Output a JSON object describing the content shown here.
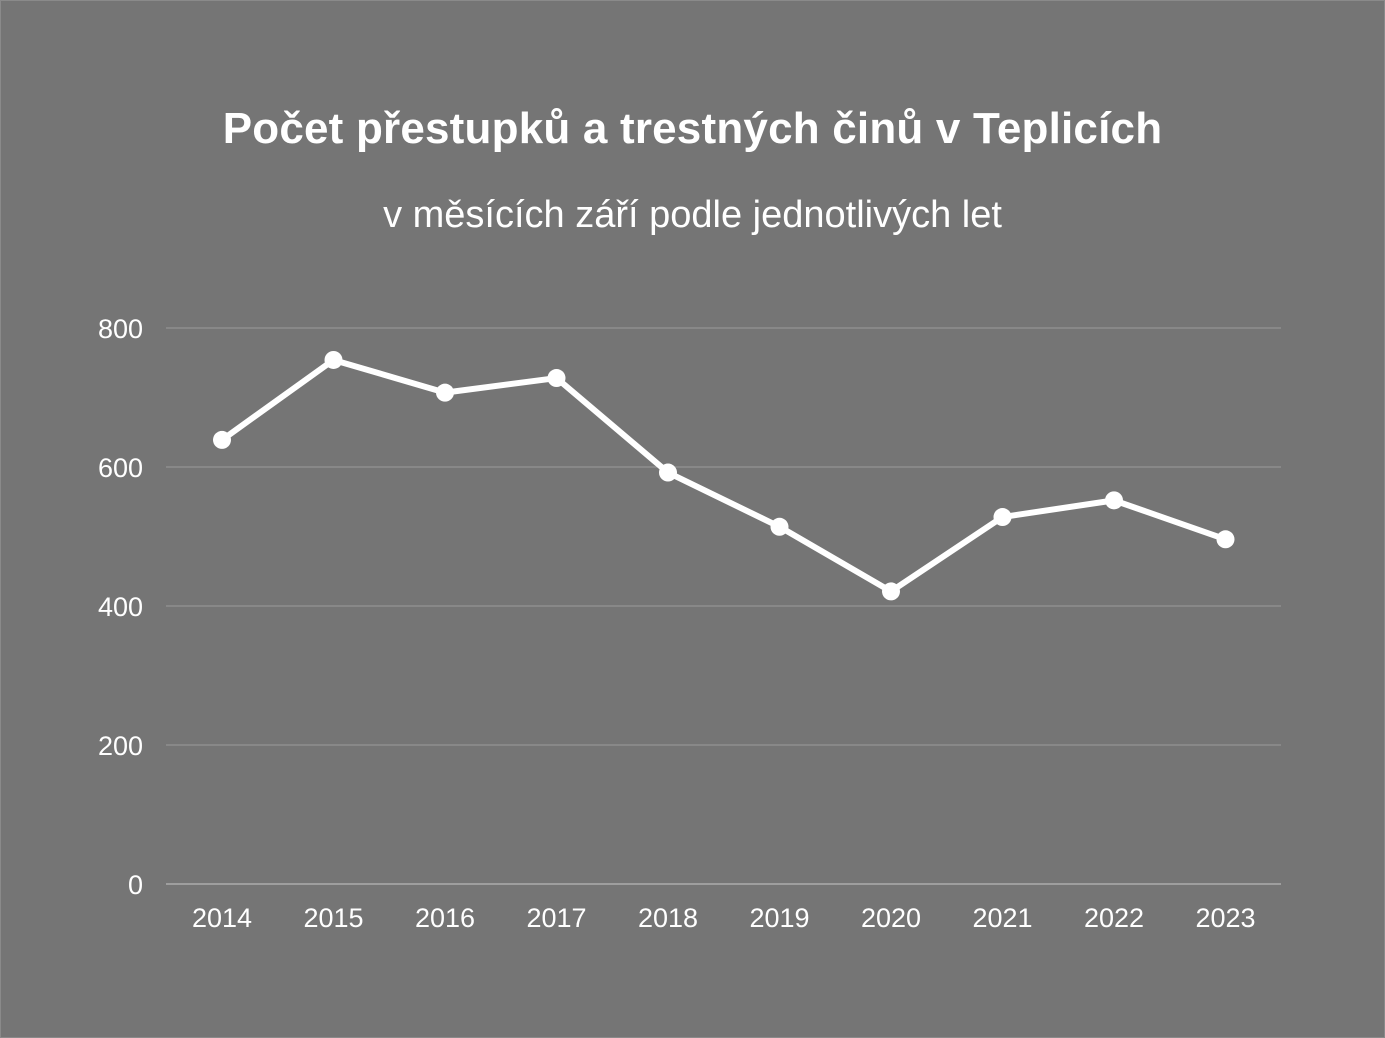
{
  "title": "Počet přestupků a trestných činů v Teplicích",
  "subtitle": "v měsících září podle jednotlivých let",
  "colors": {
    "background": "#757575",
    "line": "#ffffff",
    "gridline": "#9a9a9a",
    "text": "#ffffff"
  },
  "chart_data": {
    "type": "line",
    "title": "Počet přestupků a trestných činů v Teplicích",
    "subtitle": "v měsících září podle jednotlivých let",
    "xlabel": "",
    "ylabel": "",
    "categories": [
      "2014",
      "2015",
      "2016",
      "2017",
      "2018",
      "2019",
      "2020",
      "2021",
      "2022",
      "2023"
    ],
    "series": [
      {
        "values": [
          639,
          754,
          707,
          728,
          592,
          514,
          421,
          528,
          552,
          496
        ]
      }
    ],
    "ylim": [
      0,
      800
    ],
    "yticks": [
      0,
      200,
      400,
      600,
      800
    ],
    "grid": true,
    "legend": "none"
  }
}
